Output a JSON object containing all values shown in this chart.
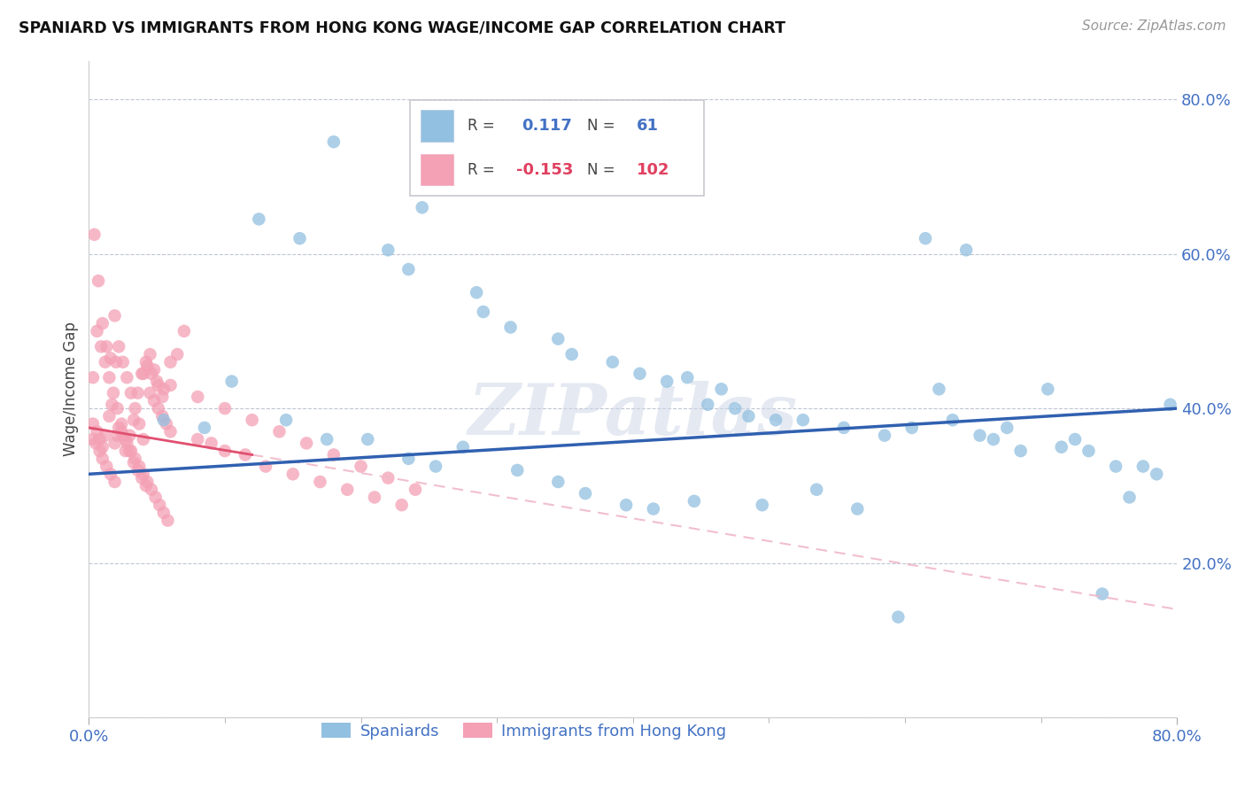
{
  "title": "SPANIARD VS IMMIGRANTS FROM HONG KONG WAGE/INCOME GAP CORRELATION CHART",
  "source": "Source: ZipAtlas.com",
  "ylabel": "Wage/Income Gap",
  "watermark": "ZIPatlas",
  "xlim": [
    0.0,
    0.8
  ],
  "ylim": [
    0.0,
    0.85
  ],
  "yticks": [
    0.0,
    0.2,
    0.4,
    0.6,
    0.8
  ],
  "ytick_labels": [
    "",
    "20.0%",
    "40.0%",
    "60.0%",
    "80.0%"
  ],
  "series1_label": "Spaniards",
  "series2_label": "Immigrants from Hong Kong",
  "series1_R": "0.117",
  "series1_N": "61",
  "series2_R": "-0.153",
  "series2_N": "102",
  "series1_color": "#92c0e0",
  "series2_color": "#f4a0b5",
  "trend1_color": "#3060b0",
  "trend2_color": "#e05070",
  "trend2_dash_color": "#f0b8c8",
  "background_color": "#ffffff",
  "spaniards_x": [
    0.18,
    0.245,
    0.125,
    0.155,
    0.22,
    0.235,
    0.285,
    0.29,
    0.31,
    0.345,
    0.355,
    0.385,
    0.405,
    0.425,
    0.44,
    0.455,
    0.465,
    0.475,
    0.485,
    0.505,
    0.525,
    0.555,
    0.585,
    0.605,
    0.625,
    0.635,
    0.655,
    0.665,
    0.685,
    0.705,
    0.725,
    0.735,
    0.755,
    0.775,
    0.785,
    0.795,
    0.055,
    0.085,
    0.105,
    0.145,
    0.175,
    0.205,
    0.235,
    0.255,
    0.275,
    0.315,
    0.345,
    0.365,
    0.395,
    0.415,
    0.445,
    0.495,
    0.535,
    0.565,
    0.595,
    0.615,
    0.645,
    0.675,
    0.715,
    0.745,
    0.765
  ],
  "spaniards_y": [
    0.745,
    0.66,
    0.645,
    0.62,
    0.605,
    0.58,
    0.55,
    0.525,
    0.505,
    0.49,
    0.47,
    0.46,
    0.445,
    0.435,
    0.44,
    0.405,
    0.425,
    0.4,
    0.39,
    0.385,
    0.385,
    0.375,
    0.365,
    0.375,
    0.425,
    0.385,
    0.365,
    0.36,
    0.345,
    0.425,
    0.36,
    0.345,
    0.325,
    0.325,
    0.315,
    0.405,
    0.385,
    0.375,
    0.435,
    0.385,
    0.36,
    0.36,
    0.335,
    0.325,
    0.35,
    0.32,
    0.305,
    0.29,
    0.275,
    0.27,
    0.28,
    0.275,
    0.295,
    0.27,
    0.13,
    0.62,
    0.605,
    0.375,
    0.35,
    0.16,
    0.285
  ],
  "hk_x": [
    0.003,
    0.006,
    0.008,
    0.01,
    0.012,
    0.015,
    0.017,
    0.019,
    0.021,
    0.024,
    0.027,
    0.03,
    0.033,
    0.036,
    0.039,
    0.042,
    0.045,
    0.048,
    0.051,
    0.054,
    0.003,
    0.006,
    0.009,
    0.012,
    0.015,
    0.018,
    0.021,
    0.024,
    0.027,
    0.03,
    0.033,
    0.036,
    0.039,
    0.042,
    0.045,
    0.048,
    0.051,
    0.054,
    0.057,
    0.06,
    0.003,
    0.005,
    0.008,
    0.01,
    0.013,
    0.016,
    0.019,
    0.022,
    0.025,
    0.028,
    0.031,
    0.034,
    0.037,
    0.04,
    0.043,
    0.046,
    0.049,
    0.052,
    0.055,
    0.058,
    0.004,
    0.007,
    0.01,
    0.013,
    0.016,
    0.019,
    0.022,
    0.025,
    0.028,
    0.031,
    0.034,
    0.037,
    0.04,
    0.043,
    0.046,
    0.05,
    0.055,
    0.06,
    0.065,
    0.07,
    0.08,
    0.09,
    0.1,
    0.115,
    0.13,
    0.15,
    0.17,
    0.19,
    0.21,
    0.23,
    0.02,
    0.04,
    0.06,
    0.08,
    0.1,
    0.12,
    0.14,
    0.16,
    0.18,
    0.2,
    0.22,
    0.24
  ],
  "hk_y": [
    0.38,
    0.37,
    0.36,
    0.35,
    0.365,
    0.39,
    0.405,
    0.355,
    0.365,
    0.37,
    0.345,
    0.365,
    0.385,
    0.42,
    0.445,
    0.46,
    0.47,
    0.45,
    0.43,
    0.415,
    0.44,
    0.5,
    0.48,
    0.46,
    0.44,
    0.42,
    0.4,
    0.38,
    0.36,
    0.345,
    0.33,
    0.32,
    0.31,
    0.3,
    0.42,
    0.41,
    0.4,
    0.39,
    0.38,
    0.37,
    0.36,
    0.355,
    0.345,
    0.335,
    0.325,
    0.315,
    0.305,
    0.375,
    0.365,
    0.355,
    0.345,
    0.335,
    0.325,
    0.315,
    0.305,
    0.295,
    0.285,
    0.275,
    0.265,
    0.255,
    0.625,
    0.565,
    0.51,
    0.48,
    0.465,
    0.52,
    0.48,
    0.46,
    0.44,
    0.42,
    0.4,
    0.38,
    0.36,
    0.455,
    0.445,
    0.435,
    0.425,
    0.46,
    0.47,
    0.5,
    0.36,
    0.355,
    0.345,
    0.34,
    0.325,
    0.315,
    0.305,
    0.295,
    0.285,
    0.275,
    0.46,
    0.445,
    0.43,
    0.415,
    0.4,
    0.385,
    0.37,
    0.355,
    0.34,
    0.325,
    0.31,
    0.295
  ],
  "trend1_x0": 0.0,
  "trend1_x1": 0.8,
  "trend1_y0": 0.315,
  "trend1_y1": 0.4,
  "trend2_solid_x0": 0.0,
  "trend2_solid_x1": 0.12,
  "trend2_solid_y0": 0.375,
  "trend2_solid_y1": 0.34,
  "trend2_dash_x0": 0.12,
  "trend2_dash_x1": 0.8,
  "trend2_dash_y0": 0.34,
  "trend2_dash_y1": 0.14
}
